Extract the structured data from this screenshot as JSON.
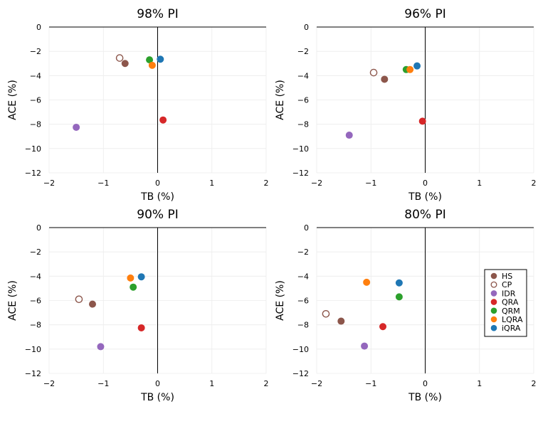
{
  "chart_data": [
    {
      "type": "scatter",
      "title": "98% PI",
      "xlabel": "TB (%)",
      "ylabel": "ACE (%)",
      "xlim": [
        -2,
        2
      ],
      "ylim": [
        -12,
        0
      ],
      "xticks": [
        -2,
        -1,
        0,
        1,
        2
      ],
      "yticks": [
        0,
        -2,
        -4,
        -6,
        -8,
        -10,
        -12
      ],
      "grid": true,
      "legend": null,
      "series": [
        {
          "name": "HS",
          "x": -0.6,
          "y": -3.0
        },
        {
          "name": "CP",
          "x": -0.7,
          "y": -2.55
        },
        {
          "name": "IDR",
          "x": -1.5,
          "y": -8.25
        },
        {
          "name": "QRA",
          "x": 0.1,
          "y": -7.65
        },
        {
          "name": "QRM",
          "x": -0.15,
          "y": -2.7
        },
        {
          "name": "LQRA",
          "x": -0.1,
          "y": -3.15
        },
        {
          "name": "iQRA",
          "x": 0.05,
          "y": -2.65
        }
      ]
    },
    {
      "type": "scatter",
      "title": "96% PI",
      "xlabel": "TB (%)",
      "ylabel": "ACE (%)",
      "xlim": [
        -2,
        2
      ],
      "ylim": [
        -12,
        0
      ],
      "xticks": [
        -2,
        -1,
        0,
        1,
        2
      ],
      "yticks": [
        0,
        -2,
        -4,
        -6,
        -8,
        -10,
        -12
      ],
      "grid": true,
      "legend": null,
      "series": [
        {
          "name": "HS",
          "x": -0.75,
          "y": -4.3
        },
        {
          "name": "CP",
          "x": -0.95,
          "y": -3.75
        },
        {
          "name": "IDR",
          "x": -1.4,
          "y": -8.9
        },
        {
          "name": "QRA",
          "x": -0.05,
          "y": -7.75
        },
        {
          "name": "QRM",
          "x": -0.35,
          "y": -3.5
        },
        {
          "name": "LQRA",
          "x": -0.28,
          "y": -3.5
        },
        {
          "name": "iQRA",
          "x": -0.15,
          "y": -3.2
        }
      ]
    },
    {
      "type": "scatter",
      "title": "90% PI",
      "xlabel": "TB (%)",
      "ylabel": "ACE (%)",
      "xlim": [
        -2,
        2
      ],
      "ylim": [
        -12,
        0
      ],
      "xticks": [
        -2,
        -1,
        0,
        1,
        2
      ],
      "yticks": [
        0,
        -2,
        -4,
        -6,
        -8,
        -10,
        -12
      ],
      "grid": true,
      "legend": null,
      "series": [
        {
          "name": "HS",
          "x": -1.2,
          "y": -6.3
        },
        {
          "name": "CP",
          "x": -1.45,
          "y": -5.9
        },
        {
          "name": "IDR",
          "x": -1.05,
          "y": -9.8
        },
        {
          "name": "QRA",
          "x": -0.3,
          "y": -8.25
        },
        {
          "name": "QRM",
          "x": -0.45,
          "y": -4.9
        },
        {
          "name": "LQRA",
          "x": -0.5,
          "y": -4.15
        },
        {
          "name": "iQRA",
          "x": -0.3,
          "y": -4.05
        }
      ]
    },
    {
      "type": "scatter",
      "title": "80% PI",
      "xlabel": "TB (%)",
      "ylabel": "ACE (%)",
      "xlim": [
        -2,
        2
      ],
      "ylim": [
        -12,
        0
      ],
      "xticks": [
        -2,
        -1,
        0,
        1,
        2
      ],
      "yticks": [
        0,
        -2,
        -4,
        -6,
        -8,
        -10,
        -12
      ],
      "grid": true,
      "legend": "right",
      "series": [
        {
          "name": "HS",
          "x": -1.55,
          "y": -7.7
        },
        {
          "name": "CP",
          "x": -1.83,
          "y": -7.1
        },
        {
          "name": "IDR",
          "x": -1.12,
          "y": -9.75
        },
        {
          "name": "QRA",
          "x": -0.78,
          "y": -8.15
        },
        {
          "name": "QRM",
          "x": -0.48,
          "y": -5.7
        },
        {
          "name": "LQRA",
          "x": -1.08,
          "y": -4.5
        },
        {
          "name": "iQRA",
          "x": -0.48,
          "y": -4.55
        }
      ]
    }
  ],
  "methods": [
    {
      "name": "HS",
      "color": "#8c564b",
      "filled": true
    },
    {
      "name": "CP",
      "color": "#8c564b",
      "filled": false
    },
    {
      "name": "IDR",
      "color": "#9467bd",
      "filled": true
    },
    {
      "name": "QRA",
      "color": "#d62728",
      "filled": true
    },
    {
      "name": "QRM",
      "color": "#2ca02c",
      "filled": true
    },
    {
      "name": "LQRA",
      "color": "#ff7f0e",
      "filled": true
    },
    {
      "name": "iQRA",
      "color": "#1f77b4",
      "filled": true
    }
  ]
}
